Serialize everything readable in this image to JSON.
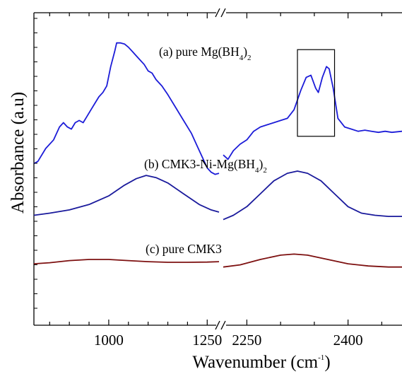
{
  "chart_data": {
    "type": "line",
    "xlabel": "Wavenumber (cm",
    "xlabel_sup": "-1",
    "xlabel_end": ")",
    "ylabel": "Absorbance (a.u)",
    "y_scale": "arbitrary units, curves vertically offset",
    "axis_break": true,
    "panels": [
      {
        "xlim": [
          810,
          1280
        ],
        "ticks": [
          1000,
          1250
        ],
        "tick_labels": [
          "1000",
          "1250"
        ]
      },
      {
        "xlim": [
          2215,
          2480
        ],
        "ticks": [
          2250,
          2400
        ],
        "tick_labels": [
          "2250",
          "2400"
        ]
      }
    ],
    "annotations": [
      {
        "id": "a",
        "text": "(a)  pure Mg(BH",
        "sub": "4",
        "close": ")",
        "sub2": "2"
      },
      {
        "id": "b",
        "text": "(b) CMK3-Ni-Mg(BH",
        "sub": "4",
        "close": ")",
        "sub2": "2"
      },
      {
        "id": "c",
        "text": "(c) pure CMK3"
      }
    ],
    "highlight_box": {
      "x_range": [
        2325,
        2380
      ],
      "series": "a"
    },
    "series": [
      {
        "id": "a",
        "color": "#1c1cd8",
        "segments": [
          [
            [
              810,
              0.57
            ],
            [
              820,
              0.58
            ],
            [
              840,
              0.64
            ],
            [
              860,
              0.68
            ],
            [
              875,
              0.74
            ],
            [
              885,
              0.76
            ],
            [
              895,
              0.74
            ],
            [
              905,
              0.73
            ],
            [
              915,
              0.76
            ],
            [
              925,
              0.77
            ],
            [
              935,
              0.76
            ],
            [
              945,
              0.79
            ],
            [
              955,
              0.82
            ],
            [
              965,
              0.85
            ],
            [
              975,
              0.88
            ],
            [
              985,
              0.9
            ],
            [
              995,
              0.93
            ],
            [
              1005,
              1.02
            ],
            [
              1015,
              1.09
            ],
            [
              1020,
              1.13
            ],
            [
              1030,
              1.13
            ],
            [
              1040,
              1.125
            ],
            [
              1050,
              1.11
            ],
            [
              1060,
              1.09
            ],
            [
              1070,
              1.07
            ],
            [
              1080,
              1.05
            ],
            [
              1090,
              1.03
            ],
            [
              1100,
              1.0
            ],
            [
              1110,
              0.99
            ],
            [
              1120,
              0.96
            ],
            [
              1135,
              0.93
            ],
            [
              1150,
              0.89
            ],
            [
              1170,
              0.83
            ],
            [
              1190,
              0.77
            ],
            [
              1210,
              0.71
            ],
            [
              1225,
              0.65
            ],
            [
              1240,
              0.59
            ],
            [
              1250,
              0.55
            ],
            [
              1260,
              0.53
            ],
            [
              1270,
              0.52
            ],
            [
              1280,
              0.525
            ]
          ],
          [
            [
              2215,
              0.61
            ],
            [
              2222,
              0.59
            ],
            [
              2230,
              0.63
            ],
            [
              2240,
              0.66
            ],
            [
              2250,
              0.68
            ],
            [
              2260,
              0.72
            ],
            [
              2270,
              0.74
            ],
            [
              2280,
              0.75
            ],
            [
              2290,
              0.76
            ],
            [
              2300,
              0.77
            ],
            [
              2310,
              0.78
            ],
            [
              2320,
              0.82
            ],
            [
              2330,
              0.91
            ],
            [
              2338,
              0.97
            ],
            [
              2345,
              0.98
            ],
            [
              2352,
              0.92
            ],
            [
              2356,
              0.9
            ],
            [
              2362,
              0.97
            ],
            [
              2368,
              1.02
            ],
            [
              2372,
              1.01
            ],
            [
              2378,
              0.92
            ],
            [
              2385,
              0.78
            ],
            [
              2395,
              0.74
            ],
            [
              2405,
              0.73
            ],
            [
              2415,
              0.72
            ],
            [
              2425,
              0.725
            ],
            [
              2435,
              0.72
            ],
            [
              2445,
              0.715
            ],
            [
              2455,
              0.72
            ],
            [
              2465,
              0.715
            ],
            [
              2480,
              0.72
            ]
          ]
        ]
      },
      {
        "id": "b",
        "color": "#1a1a9c",
        "segments": [
          [
            [
              810,
              0.33
            ],
            [
              850,
              0.34
            ],
            [
              900,
              0.355
            ],
            [
              950,
              0.38
            ],
            [
              1000,
              0.42
            ],
            [
              1040,
              0.47
            ],
            [
              1070,
              0.5
            ],
            [
              1095,
              0.515
            ],
            [
              1120,
              0.505
            ],
            [
              1150,
              0.48
            ],
            [
              1190,
              0.43
            ],
            [
              1230,
              0.38
            ],
            [
              1260,
              0.355
            ],
            [
              1280,
              0.345
            ]
          ],
          [
            [
              2215,
              0.31
            ],
            [
              2230,
              0.33
            ],
            [
              2250,
              0.37
            ],
            [
              2270,
              0.43
            ],
            [
              2290,
              0.49
            ],
            [
              2310,
              0.525
            ],
            [
              2325,
              0.535
            ],
            [
              2340,
              0.525
            ],
            [
              2360,
              0.49
            ],
            [
              2380,
              0.43
            ],
            [
              2400,
              0.37
            ],
            [
              2420,
              0.34
            ],
            [
              2440,
              0.33
            ],
            [
              2460,
              0.325
            ],
            [
              2480,
              0.325
            ]
          ]
        ]
      },
      {
        "id": "c",
        "color": "#7d1010",
        "segments": [
          [
            [
              810,
              0.105
            ],
            [
              850,
              0.11
            ],
            [
              900,
              0.12
            ],
            [
              950,
              0.125
            ],
            [
              1000,
              0.125
            ],
            [
              1050,
              0.12
            ],
            [
              1100,
              0.115
            ],
            [
              1150,
              0.112
            ],
            [
              1200,
              0.112
            ],
            [
              1250,
              0.113
            ],
            [
              1280,
              0.115
            ]
          ],
          [
            [
              2215,
              0.09
            ],
            [
              2240,
              0.1
            ],
            [
              2270,
              0.125
            ],
            [
              2300,
              0.145
            ],
            [
              2320,
              0.15
            ],
            [
              2340,
              0.145
            ],
            [
              2370,
              0.125
            ],
            [
              2400,
              0.105
            ],
            [
              2430,
              0.095
            ],
            [
              2460,
              0.09
            ],
            [
              2480,
              0.09
            ]
          ]
        ]
      }
    ]
  }
}
